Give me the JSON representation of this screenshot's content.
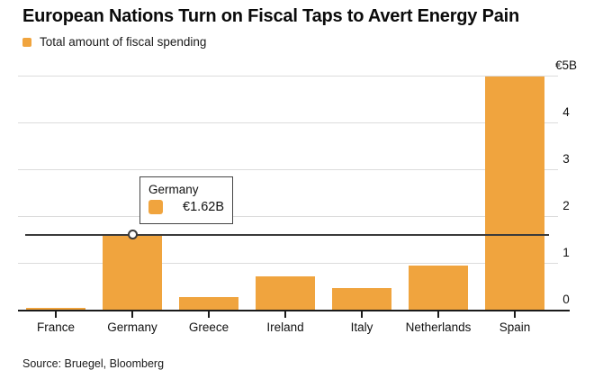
{
  "header": {
    "title": "European Nations Turn on Fiscal Taps to Avert Energy Pain",
    "legend_label": "Total amount of fiscal spending"
  },
  "chart_data": {
    "type": "bar",
    "title": "European Nations Turn on Fiscal Taps to Avert Energy Pain",
    "legend_entries": [
      "Total amount of fiscal spending"
    ],
    "legend_position": "top-left",
    "categories": [
      "France",
      "Germany",
      "Greece",
      "Ireland",
      "Italy",
      "Netherlands",
      "Spain"
    ],
    "values": [
      0.06,
      1.62,
      0.28,
      0.74,
      0.49,
      0.96,
      5.0
    ],
    "value_unit": "€ billions",
    "xlabel": "",
    "ylabel": "",
    "ylim": [
      0,
      5.5
    ],
    "yticks": [
      0,
      1,
      2,
      3,
      4,
      5
    ],
    "ytick_labels": [
      "0",
      "1",
      "2",
      "3",
      "4",
      "€5B"
    ],
    "ytick_side": "right",
    "grid": "horizontal",
    "highlight": {
      "category": "Germany",
      "value": 1.62,
      "value_label": "€1.62B",
      "marker": "open-circle",
      "reference_line": true
    }
  },
  "tooltip": {
    "title": "Germany",
    "value": "€1.62B"
  },
  "footer": {
    "source": "Source: Bruegel, Bloomberg"
  },
  "colors": {
    "bar": "#F0A43E",
    "grid_line": "#DCDCDC",
    "axis_line": "#1A1A1A",
    "tracker_line": "#3B3B3B",
    "tooltip_border": "#454545",
    "text": "#111111"
  }
}
